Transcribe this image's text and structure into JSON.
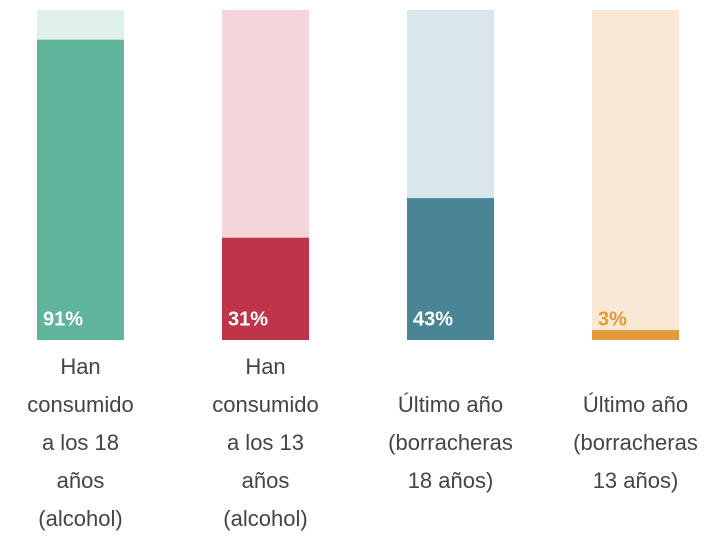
{
  "chart_data": {
    "type": "bar",
    "categories": [
      "Han\nconsumido\na los 18\naños\n(alcohol)",
      "Han\nconsumido\na los 13\naños\n(alcohol)",
      "Último año\n(borracheras\n18 años)",
      "Último año\n(borracheras\n13 años)"
    ],
    "values": [
      91,
      31,
      43,
      3
    ],
    "value_labels": [
      "91%",
      "31%",
      "43%",
      "3%"
    ],
    "colors": [
      "#5fb49c",
      "#c0344a",
      "#4a8595",
      "#e39a3a"
    ],
    "track_colors": [
      "#dff0ea",
      "#f6d5da",
      "#d9e6ec",
      "#f9e8d5"
    ],
    "ylim": [
      0,
      100
    ]
  }
}
